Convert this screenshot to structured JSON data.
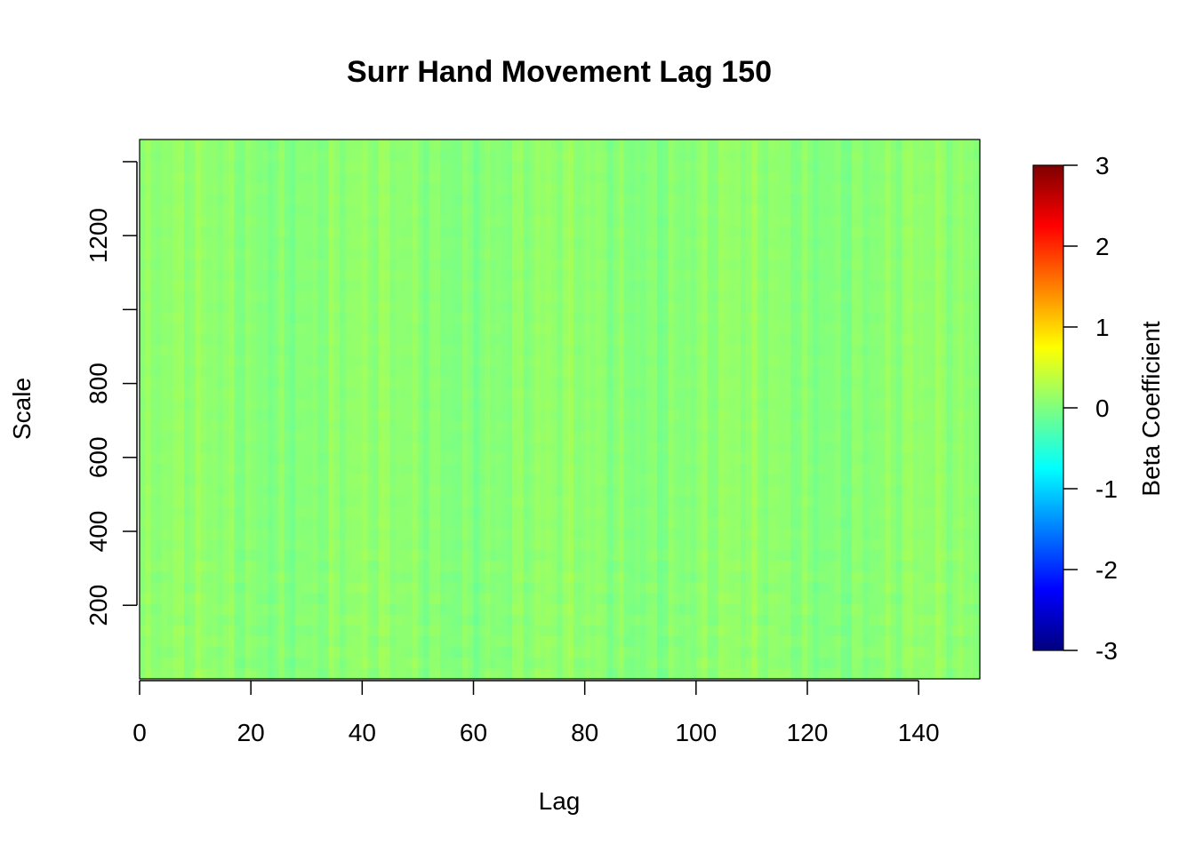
{
  "chart_data": {
    "type": "heatmap",
    "title": "Surr Hand Movement Lag 150",
    "xlabel": "Lag",
    "ylabel": "Scale",
    "colorbar_label": "Beta Coefficient",
    "xlim": [
      0,
      151
    ],
    "ylim": [
      1,
      1460
    ],
    "x_ticks": [
      0,
      20,
      40,
      60,
      80,
      100,
      120,
      140
    ],
    "y_ticks": [
      200,
      400,
      600,
      800,
      1000,
      1200,
      1400
    ],
    "y_tick_labels": [
      "200",
      "400",
      "600",
      "800",
      "",
      "1200",
      ""
    ],
    "colorbar_range": [
      -3,
      3
    ],
    "colorbar_ticks": [
      3,
      2,
      1,
      0,
      -1,
      -2,
      -3
    ],
    "colorbar_tick_labels": [
      "3",
      "2",
      "1",
      "0",
      "-1",
      "-2",
      "-3"
    ],
    "colormap": [
      "#00007F",
      "#0000FF",
      "#007FFF",
      "#00FFFF",
      "#7FFF7F",
      "#FFFF00",
      "#FF7F00",
      "#FF0000",
      "#7F0000"
    ],
    "value_range_observed": [
      -0.2,
      0.3
    ],
    "n_lags": 151,
    "n_scales": 50
  }
}
